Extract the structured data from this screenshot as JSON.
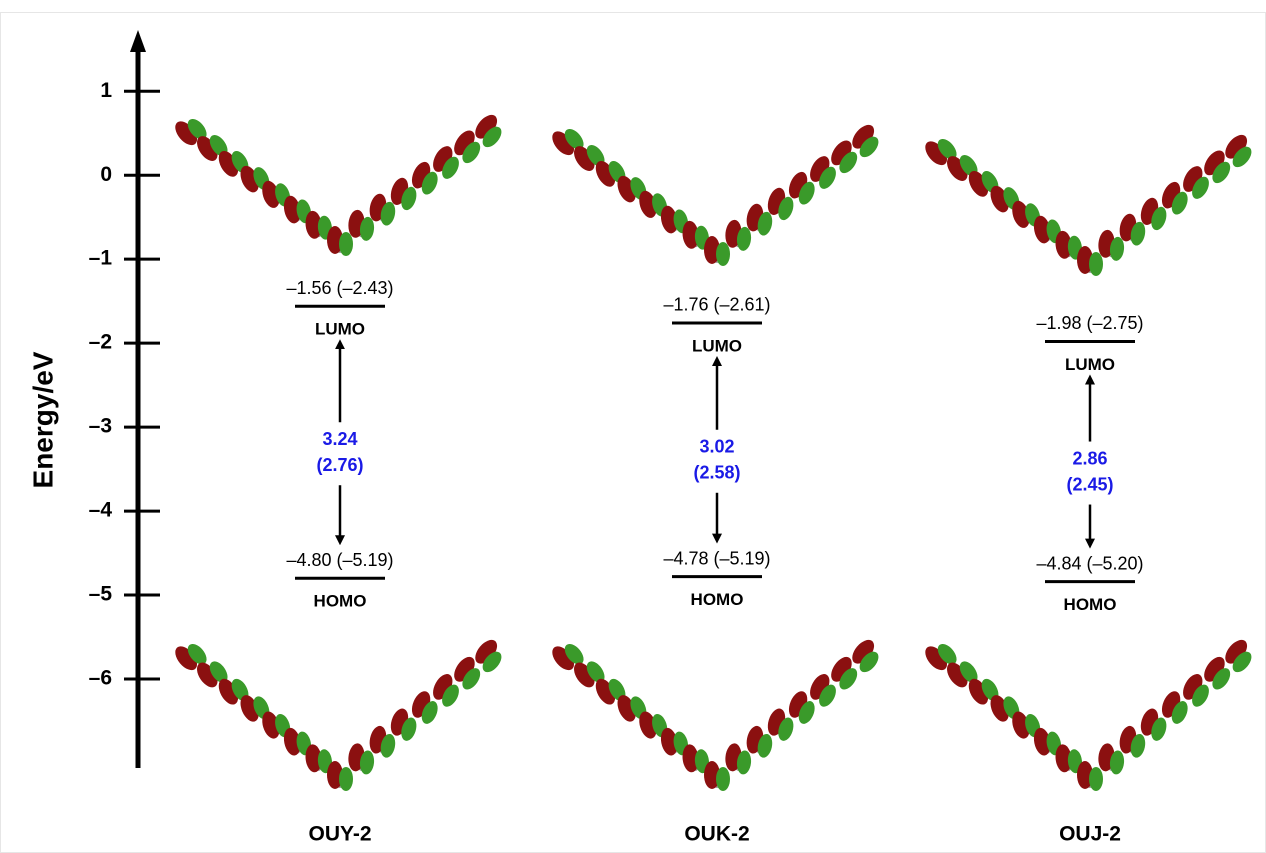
{
  "chart_data": {
    "type": "energy-level",
    "y_label": "Energy/eV",
    "ylim": [
      -7.06,
      1.67
    ],
    "yticks": [
      {
        "value": 1,
        "label": "1"
      },
      {
        "value": 0,
        "label": "0"
      },
      {
        "value": -1,
        "label": "–1"
      },
      {
        "value": -2,
        "label": "–2"
      },
      {
        "value": -3,
        "label": "–3"
      },
      {
        "value": -4,
        "label": "–4"
      },
      {
        "value": -5,
        "label": "–5"
      },
      {
        "value": -6,
        "label": "–6"
      }
    ],
    "categories": [
      "OUY-2",
      "OUK-2",
      "OUJ-2"
    ],
    "series": [
      {
        "name": "LUMO",
        "values": [
          -1.56,
          -1.76,
          -1.98
        ],
        "value_labels": [
          "–1.56 (–2.43)",
          "–1.76 (–2.61)",
          "–1.98 (–2.75)"
        ]
      },
      {
        "name": "HOMO",
        "values": [
          -4.8,
          -4.78,
          -4.84
        ],
        "value_labels": [
          "–4.80 (–5.19)",
          "–4.78 (–5.19)",
          "–4.84 (–5.20)"
        ]
      }
    ],
    "gaps": {
      "values": [
        3.24,
        3.02,
        2.86
      ],
      "value_labels": [
        [
          "3.24",
          "(2.76)"
        ],
        [
          "3.02",
          "(2.58)"
        ],
        [
          "2.86",
          "(2.45)"
        ]
      ]
    }
  }
}
